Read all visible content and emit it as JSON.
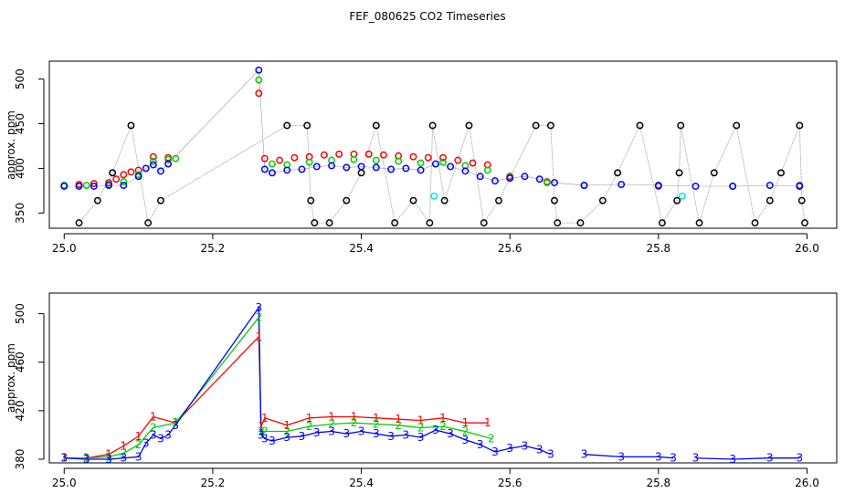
{
  "title": "FEF_080625  CO2 Timeseries",
  "colors": {
    "ch1": "#ff0000",
    "ch2": "#00cc00",
    "ch3": "#0000ff",
    "ref": "#000000",
    "cyan": "#00e5e5",
    "connector": "#999999"
  },
  "chart_data": [
    {
      "type": "scatter",
      "panel": "top",
      "title": "FEF_080625  CO2 Timeseries",
      "xlabel": "",
      "ylabel": "approx. ppm",
      "xlim": [
        24.98,
        26.04
      ],
      "ylim": [
        333,
        520
      ],
      "xticks": [
        "25.0",
        "25.2",
        "25.4",
        "25.6",
        "25.8",
        "26.0"
      ],
      "yticks": [
        "350",
        "400",
        "450",
        "500"
      ],
      "series": [
        {
          "name": "red",
          "color": "#ff0000",
          "x": [
            25.0,
            25.02,
            25.04,
            25.06,
            25.07,
            25.08,
            25.09,
            25.1,
            25.12,
            25.14,
            25.262,
            25.27,
            25.29,
            25.31,
            25.33,
            25.35,
            25.37,
            25.39,
            25.41,
            25.43,
            25.45,
            25.47,
            25.49,
            25.51,
            25.53,
            25.55,
            25.57,
            25.6,
            25.65,
            25.7,
            25.8,
            25.9,
            25.99
          ],
          "y": [
            381,
            382,
            383,
            384,
            388,
            393,
            396,
            398,
            413,
            412,
            484,
            411,
            409,
            412,
            413,
            415,
            416,
            416,
            416,
            415,
            414,
            413,
            412,
            412,
            409,
            406,
            404,
            391,
            385,
            381,
            380,
            380,
            381
          ]
        },
        {
          "name": "green",
          "color": "#00cc00",
          "x": [
            25.0,
            25.03,
            25.06,
            25.08,
            25.1,
            25.12,
            25.14,
            25.15,
            25.262,
            25.28,
            25.3,
            25.33,
            25.36,
            25.39,
            25.42,
            25.45,
            25.48,
            25.51,
            25.54,
            25.57,
            25.6,
            25.65,
            25.7,
            25.8,
            25.9,
            25.99
          ],
          "y": [
            381,
            381,
            382,
            385,
            393,
            408,
            410,
            411,
            499,
            405,
            404,
            407,
            409,
            410,
            409,
            408,
            406,
            407,
            403,
            398,
            390,
            384,
            381,
            381,
            380,
            380
          ]
        },
        {
          "name": "blue",
          "color": "#0000ff",
          "x": [
            25.0,
            25.02,
            25.04,
            25.06,
            25.08,
            25.1,
            25.11,
            25.12,
            25.13,
            25.14,
            25.262,
            25.27,
            25.28,
            25.3,
            25.32,
            25.34,
            25.36,
            25.38,
            25.4,
            25.42,
            25.44,
            25.46,
            25.48,
            25.5,
            25.52,
            25.54,
            25.56,
            25.58,
            25.6,
            25.62,
            25.64,
            25.66,
            25.7,
            25.75,
            25.8,
            25.85,
            25.9,
            25.95,
            25.99
          ],
          "y": [
            380,
            380,
            380,
            381,
            381,
            391,
            400,
            404,
            397,
            405,
            510,
            399,
            395,
            398,
            399,
            402,
            403,
            401,
            402,
            401,
            399,
            400,
            398,
            405,
            402,
            397,
            391,
            386,
            389,
            391,
            388,
            384,
            381,
            382,
            381,
            380,
            380,
            381,
            380
          ]
        },
        {
          "name": "black",
          "color": "#000000",
          "x": [
            25.02,
            25.045,
            25.065,
            25.09,
            25.113,
            25.13,
            25.3,
            25.327,
            25.332,
            25.337,
            25.357,
            25.38,
            25.4,
            25.42,
            25.445,
            25.47,
            25.492,
            25.496,
            25.512,
            25.545,
            25.565,
            25.585,
            25.635,
            25.655,
            25.66,
            25.664,
            25.695,
            25.725,
            25.745,
            25.775,
            25.805,
            25.825,
            25.828,
            25.83,
            25.855,
            25.875,
            25.905,
            25.93,
            25.95,
            25.965,
            25.99,
            25.993,
            25.997
          ],
          "y": [
            339,
            364,
            395,
            448,
            339,
            364,
            448,
            448,
            364,
            339,
            339,
            364,
            395,
            448,
            339,
            364,
            339,
            448,
            364,
            448,
            339,
            364,
            448,
            448,
            364,
            339,
            339,
            364,
            395,
            448,
            339,
            364,
            395,
            448,
            339,
            395,
            448,
            339,
            364,
            395,
            448,
            364,
            339
          ]
        },
        {
          "name": "cyan",
          "color": "#00e5e5",
          "x": [
            25.498,
            25.832
          ],
          "y": [
            369,
            369
          ]
        }
      ]
    },
    {
      "type": "line",
      "panel": "bottom",
      "xlabel": "",
      "ylabel": "approx. ppm",
      "xlim": [
        24.98,
        26.04
      ],
      "ylim": [
        377,
        517
      ],
      "xticks": [
        "25.0",
        "25.2",
        "25.4",
        "25.6",
        "25.8",
        "26.0"
      ],
      "yticks": [
        "380",
        "420",
        "460",
        "500"
      ],
      "series": [
        {
          "name": "1",
          "label": "1",
          "color": "#ff0000",
          "x": [
            25.0,
            25.03,
            25.06,
            25.08,
            25.1,
            25.12,
            25.15,
            25.262,
            25.265,
            25.27,
            25.3,
            25.33,
            25.36,
            25.39,
            25.42,
            25.45,
            25.48,
            25.51,
            25.54,
            25.57
          ],
          "y": [
            381,
            381,
            384,
            391,
            399,
            415,
            410,
            481,
            407,
            414,
            408,
            414,
            415,
            415,
            414,
            413,
            412,
            414,
            410,
            410
          ]
        },
        {
          "name": "2",
          "label": "2",
          "color": "#00cc00",
          "x": [
            25.0,
            25.03,
            25.06,
            25.08,
            25.1,
            25.12,
            25.15,
            25.262,
            25.265,
            25.27,
            25.3,
            25.33,
            25.36,
            25.39,
            25.42,
            25.45,
            25.48,
            25.51,
            25.54,
            25.575
          ],
          "y": [
            381,
            381,
            382,
            385,
            392,
            406,
            410,
            497,
            403,
            403,
            403,
            407,
            409,
            410,
            409,
            408,
            406,
            407,
            403,
            397
          ]
        },
        {
          "name": "3",
          "label": "3",
          "color": "#0000ff",
          "x": [
            25.0,
            25.03,
            25.06,
            25.08,
            25.1,
            25.11,
            25.12,
            25.13,
            25.14,
            25.15,
            25.262,
            25.265,
            25.27,
            25.28,
            25.3,
            25.32,
            25.34,
            25.36,
            25.38,
            25.4,
            25.42,
            25.44,
            25.46,
            25.48,
            25.5,
            25.52,
            25.54,
            25.56,
            25.58,
            25.6,
            25.62,
            25.64,
            25.655,
            25.67,
            25.7,
            25.75,
            25.8,
            25.82,
            25.835,
            25.85,
            25.9,
            25.95,
            25.99
          ],
          "y": [
            381,
            380,
            380,
            381,
            382,
            393,
            400,
            397,
            400,
            408,
            505,
            400,
            397,
            395,
            398,
            399,
            402,
            403,
            401,
            403,
            401,
            399,
            400,
            398,
            404,
            401,
            396,
            392,
            386,
            389,
            391,
            388,
            384,
            null,
            384,
            382,
            382,
            381,
            null,
            381,
            380,
            381,
            381
          ]
        }
      ]
    }
  ]
}
